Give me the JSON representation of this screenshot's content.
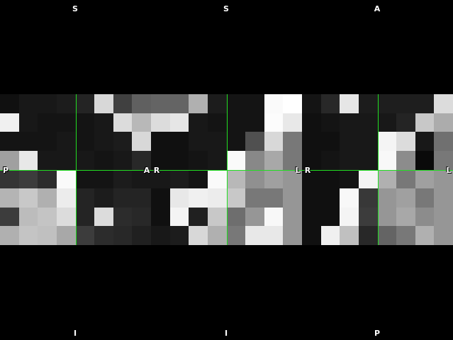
{
  "viewer": {
    "views": [
      {
        "name": "sagittal",
        "labels": {
          "top": "S",
          "bottom": "I",
          "left": "P",
          "right": "A"
        },
        "crosshair": {
          "x": 0.5,
          "y": 0.5
        },
        "grid": [
          [
            16,
            24,
            24,
            28,
            36,
            216,
            64,
            96
          ],
          [
            240,
            24,
            20,
            20,
            20,
            24,
            220,
            184
          ],
          [
            20,
            20,
            20,
            24,
            20,
            24,
            28,
            216
          ],
          [
            160,
            232,
            24,
            24,
            24,
            20,
            24,
            40
          ],
          [
            52,
            60,
            44,
            250,
            20,
            20,
            28,
            24
          ],
          [
            180,
            200,
            176,
            236,
            36,
            28,
            36,
            36
          ],
          [
            60,
            188,
            196,
            220,
            36,
            220,
            44,
            40
          ],
          [
            176,
            196,
            192,
            168,
            60,
            44,
            40,
            32
          ]
        ]
      },
      {
        "name": "coronal",
        "labels": {
          "top": "S",
          "bottom": "I",
          "left": "R",
          "right": "L"
        },
        "crosshair": {
          "x": 0.5,
          "y": 0.5
        },
        "grid": [
          [
            100,
            100,
            176,
            28,
            20,
            20,
            250,
            255
          ],
          [
            220,
            230,
            24,
            20,
            20,
            20,
            252,
            232
          ],
          [
            16,
            16,
            24,
            24,
            20,
            80,
            216,
            120
          ],
          [
            16,
            16,
            20,
            24,
            250,
            136,
            168,
            120
          ],
          [
            24,
            28,
            20,
            250,
            184,
            144,
            160,
            150
          ],
          [
            16,
            232,
            240,
            236,
            200,
            120,
            120,
            150
          ],
          [
            16,
            244,
            32,
            200,
            110,
            150,
            248,
            150
          ],
          [
            24,
            28,
            216,
            176,
            120,
            232,
            232,
            150
          ]
        ]
      },
      {
        "name": "axial",
        "labels": {
          "top": "A",
          "bottom": "P",
          "left": "R",
          "right": "L"
        },
        "crosshair": {
          "x": 0.5,
          "y": 0.5
        },
        "grid": [
          [
            20,
            40,
            230,
            28,
            30,
            30,
            30,
            220
          ],
          [
            16,
            20,
            24,
            24,
            24,
            36,
            200,
            172
          ],
          [
            16,
            16,
            24,
            24,
            244,
            220,
            24,
            112
          ],
          [
            16,
            20,
            24,
            24,
            248,
            140,
            10,
            120
          ],
          [
            16,
            16,
            20,
            244,
            176,
            120,
            160,
            150
          ],
          [
            16,
            16,
            248,
            56,
            150,
            160,
            120,
            150
          ],
          [
            16,
            16,
            244,
            60,
            150,
            168,
            140,
            150
          ],
          [
            16,
            240,
            192,
            40,
            100,
            120,
            176,
            150
          ]
        ]
      }
    ]
  }
}
